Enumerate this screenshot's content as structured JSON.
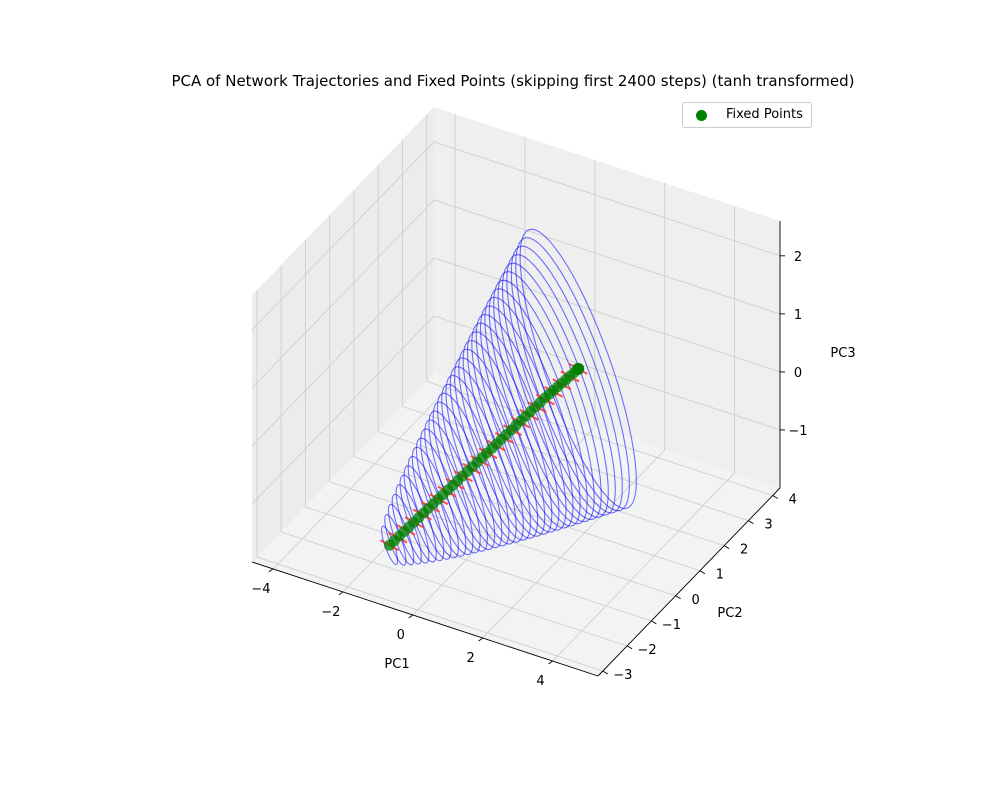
{
  "chart_data": {
    "type": "scatter",
    "projection": "3d",
    "title": "PCA of Network Trajectories and Fixed Points (skipping first 2400 steps) (tanh transformed)",
    "xlabel": "PC1",
    "ylabel": "PC2",
    "zlabel": "PC3",
    "xlim": [
      -4.6,
      5.3
    ],
    "ylim": [
      -3.2,
      4.3
    ],
    "zlim": [
      -2.0,
      2.6
    ],
    "xticks": [
      -4,
      -2,
      0,
      2,
      4
    ],
    "xtick_labels": [
      "−4",
      "−2",
      "0",
      "2",
      "4"
    ],
    "yticks": [
      -3,
      -2,
      -1,
      0,
      1,
      2,
      3,
      4
    ],
    "ytick_labels": [
      "−3",
      "−2",
      "−1",
      "0",
      "1",
      "2",
      "3",
      "4"
    ],
    "zticks": [
      -1,
      0,
      1,
      2
    ],
    "ztick_labels": [
      "−1",
      "0",
      "1",
      "2"
    ],
    "grid": true,
    "legend_position": "top-right",
    "legend": [
      "Fixed Points"
    ],
    "series": [
      {
        "name": "Fixed Points",
        "kind": "scatter",
        "color": "#008000",
        "points": [
          [
            -1.6,
            -1.85,
            -1.7
          ],
          [
            -0.8,
            -1.4,
            -1.1
          ],
          [
            0.0,
            -0.95,
            -0.5
          ],
          [
            0.8,
            -0.5,
            0.1
          ],
          [
            1.6,
            -0.05,
            0.7
          ],
          [
            2.2,
            0.45,
            1.1
          ]
        ]
      },
      {
        "kind": "fixed-point-directions",
        "color": "#ff3030",
        "start": [
          -1.6,
          -1.85,
          -1.7
        ],
        "end": [
          2.2,
          0.45,
          1.1
        ],
        "count": 24
      },
      {
        "kind": "trajectories",
        "color": "#0000ff",
        "count": 34,
        "axis_start": [
          -1.6,
          -1.85,
          -1.7
        ],
        "axis_end": [
          2.2,
          0.45,
          1.1
        ],
        "max_radius": 2.2
      }
    ]
  }
}
